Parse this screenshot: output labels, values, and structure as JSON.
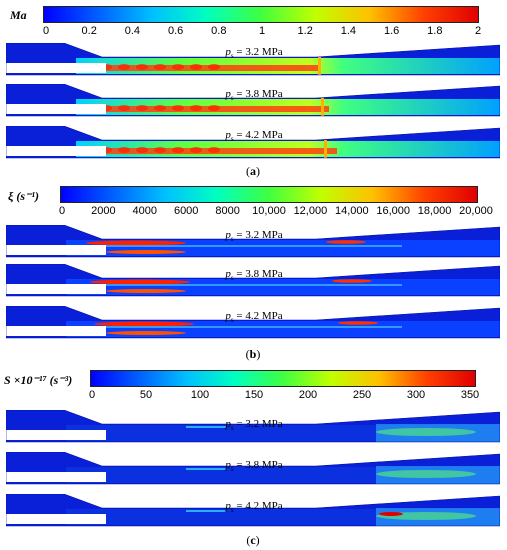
{
  "colormap": [
    "#0000ff",
    "#0060ff",
    "#00c0ff",
    "#00ffc0",
    "#40ff40",
    "#c0ff00",
    "#ffc000",
    "#ff4000",
    "#e00000"
  ],
  "panels": [
    {
      "id": "a",
      "variable_label": "Ma",
      "ticks": [
        "0",
        "0.2",
        "0.4",
        "0.6",
        "0.8",
        "1",
        "1.2",
        "1.4",
        "1.6",
        "1.8",
        "2"
      ],
      "caption_letter": "a",
      "pressures": [
        "3.2 MPa",
        "3.8 MPa",
        "4.2 MPa"
      ]
    },
    {
      "id": "b",
      "variable_label": "ξ (s⁻¹)",
      "ticks": [
        "0",
        "2000",
        "4000",
        "6000",
        "8000",
        "10,000",
        "12,000",
        "14,000",
        "16,000",
        "18,000",
        "20,000"
      ],
      "caption_letter": "b",
      "pressures": [
        "3.2 MPa",
        "3.8 MPa",
        "4.2 MPa"
      ]
    },
    {
      "id": "c",
      "variable_label": "S ×10⁻¹⁷ (s⁻³)",
      "ticks": [
        "0",
        "50",
        "100",
        "150",
        "200",
        "250",
        "300",
        "350"
      ],
      "caption_letter": "c",
      "pressures": [
        "3.2 MPa",
        "3.8 MPa",
        "4.2 MPa"
      ]
    }
  ],
  "ps_symbol": "p",
  "ps_sub": "s",
  "equals": " = "
}
